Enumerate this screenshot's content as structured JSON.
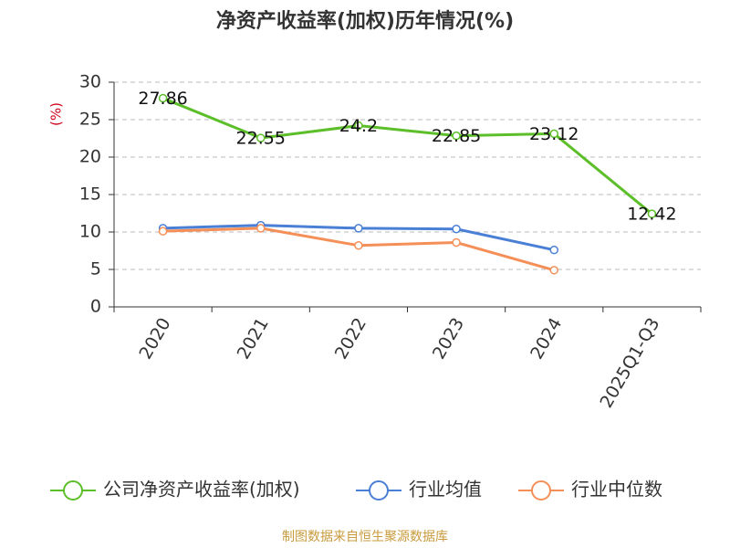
{
  "chart_data": {
    "type": "line",
    "title": "净资产收益率(加权)历年情况(%)",
    "y_label": "(%)",
    "source": "制图数据来自恒生聚源数据库",
    "categories": [
      "2020",
      "2021",
      "2022",
      "2023",
      "2024",
      "2025Q1-Q3"
    ],
    "series": [
      {
        "name": "公司净资产收益率(加权)",
        "color": "#5cbf2a",
        "values": [
          27.86,
          22.55,
          24.2,
          22.85,
          23.12,
          12.42
        ]
      },
      {
        "name": "行业均值",
        "color": "#4a7fd6",
        "values": [
          10.5,
          10.9,
          10.5,
          10.4,
          7.6,
          null
        ]
      },
      {
        "name": "行业中位数",
        "color": "#f58f58",
        "values": [
          10.1,
          10.5,
          8.2,
          8.6,
          4.9,
          null
        ]
      }
    ],
    "data_labels_series": 0,
    "ylim": [
      0,
      30
    ],
    "yticks": [
      0,
      5,
      10,
      15,
      20,
      25,
      30
    ],
    "grid": true
  }
}
